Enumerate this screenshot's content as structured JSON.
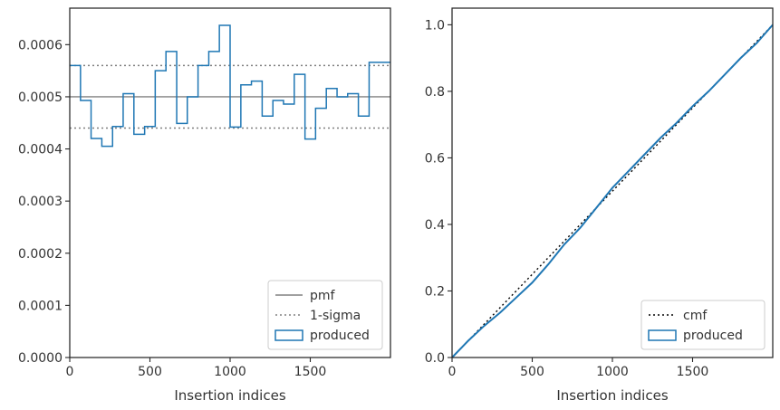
{
  "chart_data": [
    {
      "type": "line",
      "drawstyle": "steps-post",
      "xlabel": "Insertion indices",
      "ylabel": "",
      "xlim": [
        0,
        2000
      ],
      "ylim": [
        0,
        0.00067
      ],
      "xticks": [
        0,
        500,
        1000,
        1500
      ],
      "xtick_labels": [
        "0",
        "500",
        "1000",
        "1500"
      ],
      "yticks": [
        0,
        0.0001,
        0.0002,
        0.0003,
        0.0004,
        0.0005,
        0.0006
      ],
      "ytick_labels": [
        "0.0000",
        "0.0001",
        "0.0002",
        "0.0003",
        "0.0004",
        "0.0005",
        "0.0006"
      ],
      "grid": false,
      "legend_position": "lower right",
      "series": [
        {
          "name": "pmf",
          "style": "solid",
          "color": "#808080",
          "y": 0.0005
        },
        {
          "name": "1-sigma",
          "style": "dotted",
          "color": "#808080",
          "y": [
            0.00044,
            0.00056
          ]
        },
        {
          "name": "produced",
          "style": "step-histogram",
          "color": "#1f77b4",
          "bin_edges": [
            0,
            67,
            133,
            200,
            267,
            333,
            400,
            467,
            533,
            600,
            667,
            733,
            800,
            867,
            933,
            1000,
            1067,
            1133,
            1200,
            1267,
            1333,
            1400,
            1467,
            1533,
            1600,
            1667,
            1733,
            1800,
            1867,
            1933,
            2000
          ],
          "values": [
            0.00056,
            0.000493,
            0.00042,
            0.000405,
            0.000443,
            0.000506,
            0.000428,
            0.000443,
            0.00055,
            0.000587,
            0.000449,
            0.0005,
            0.00056,
            0.000587,
            0.000637,
            0.000442,
            0.000523,
            0.00053,
            0.000463,
            0.000493,
            0.000486,
            0.000543,
            0.000419,
            0.000478,
            0.000516,
            0.0005,
            0.000506,
            0.000463,
            0.000566,
            0.000566
          ]
        }
      ]
    },
    {
      "type": "line",
      "xlabel": "Insertion indices",
      "ylabel": "",
      "xlim": [
        0,
        2000
      ],
      "ylim": [
        0,
        1.05
      ],
      "xticks": [
        0,
        500,
        1000,
        1500
      ],
      "xtick_labels": [
        "0",
        "500",
        "1000",
        "1500"
      ],
      "yticks": [
        0,
        0.2,
        0.4,
        0.6,
        0.8,
        1.0
      ],
      "ytick_labels": [
        "0.0",
        "0.2",
        "0.4",
        "0.6",
        "0.8",
        "1.0"
      ],
      "grid": false,
      "legend_position": "lower right",
      "series": [
        {
          "name": "cmf",
          "style": "dotted",
          "color": "#000000",
          "x": [
            0,
            2000
          ],
          "y": [
            0,
            1
          ]
        },
        {
          "name": "produced",
          "style": "solid",
          "color": "#1f77b4",
          "x": [
            0,
            100,
            200,
            300,
            400,
            500,
            600,
            700,
            800,
            900,
            1000,
            1100,
            1200,
            1300,
            1400,
            1500,
            1600,
            1700,
            1800,
            1900,
            2000
          ],
          "y": [
            0,
            0.05,
            0.095,
            0.135,
            0.18,
            0.225,
            0.28,
            0.34,
            0.39,
            0.45,
            0.51,
            0.56,
            0.61,
            0.66,
            0.705,
            0.755,
            0.8,
            0.85,
            0.9,
            0.945,
            1.0
          ]
        }
      ]
    }
  ]
}
